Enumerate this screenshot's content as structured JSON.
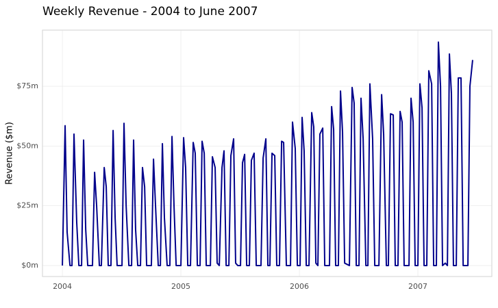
{
  "chart_data": {
    "type": "line",
    "title": "Weekly Revenue - 2004 to June 2007",
    "y_label": "Revenue ($m)",
    "xlim": [
      2003.832,
      2007.624
    ],
    "xticks": [
      2004,
      2005,
      2006,
      2007
    ],
    "ylim": [
      -4.6,
      98.5
    ],
    "yticks": [
      {
        "value": 0,
        "label": "$0m"
      },
      {
        "value": 25,
        "label": "$25m"
      },
      {
        "value": 50,
        "label": "$50m"
      },
      {
        "value": 75,
        "label": "$75m"
      }
    ],
    "grid": true,
    "x": [
      2004.0,
      2004.023,
      2004.04,
      2004.064,
      2004.081,
      2004.098,
      2004.121,
      2004.139,
      2004.162,
      2004.179,
      2004.197,
      2004.214,
      2004.254,
      2004.272,
      2004.289,
      2004.312,
      2004.329,
      2004.353,
      2004.37,
      2004.387,
      2004.41,
      2004.428,
      2004.445,
      2004.462,
      2004.503,
      2004.52,
      2004.538,
      2004.561,
      2004.584,
      2004.601,
      2004.618,
      2004.636,
      2004.659,
      2004.676,
      2004.694,
      2004.711,
      2004.751,
      2004.769,
      2004.786,
      2004.809,
      2004.827,
      2004.844,
      2004.861,
      2004.884,
      2004.907,
      2004.925,
      2004.942,
      2004.96,
      2005.0,
      2005.023,
      2005.04,
      2005.058,
      2005.081,
      2005.104,
      2005.121,
      2005.139,
      2005.162,
      2005.179,
      2005.197,
      2005.214,
      2005.249,
      2005.266,
      2005.289,
      2005.306,
      2005.324,
      2005.347,
      2005.364,
      2005.382,
      2005.405,
      2005.422,
      2005.445,
      2005.462,
      2005.48,
      2005.503,
      2005.52,
      2005.538,
      2005.555,
      2005.578,
      2005.595,
      2005.618,
      2005.636,
      2005.676,
      2005.694,
      2005.717,
      2005.734,
      2005.751,
      2005.769,
      2005.792,
      2005.809,
      2005.832,
      2005.85,
      2005.867,
      2005.89,
      2005.925,
      2005.942,
      2005.965,
      2005.983,
      2006.006,
      2006.023,
      2006.04,
      2006.058,
      2006.081,
      2006.104,
      2006.121,
      2006.139,
      2006.156,
      2006.173,
      2006.197,
      2006.214,
      2006.254,
      2006.272,
      2006.289,
      2006.306,
      2006.329,
      2006.347,
      2006.364,
      2006.382,
      2006.422,
      2006.445,
      2006.462,
      2006.48,
      2006.503,
      2006.52,
      2006.538,
      2006.561,
      2006.578,
      2006.595,
      2006.618,
      2006.636,
      2006.671,
      2006.694,
      2006.711,
      2006.734,
      2006.751,
      2006.769,
      2006.792,
      2006.809,
      2006.832,
      2006.85,
      2006.867,
      2006.884,
      2006.925,
      2006.942,
      2006.96,
      2006.977,
      2007.0,
      2007.017,
      2007.035,
      2007.052,
      2007.075,
      2007.092,
      2007.116,
      2007.133,
      2007.156,
      2007.173,
      2007.191,
      2007.208,
      2007.231,
      2007.249,
      2007.266,
      2007.283,
      2007.3,
      2007.324,
      2007.341,
      2007.364,
      2007.382,
      2007.422,
      2007.439,
      2007.462
    ],
    "series": [
      {
        "color": "#00008b",
        "values": [
          0,
          58.5,
          14,
          0,
          0,
          55,
          18,
          0,
          0,
          52.5,
          15,
          0,
          0,
          39,
          25,
          0,
          0,
          41,
          33,
          0,
          0,
          56.5,
          20,
          0,
          0,
          59.5,
          25,
          0,
          0,
          52.5,
          15,
          0,
          0,
          41,
          33,
          0,
          0,
          44.5,
          25,
          0,
          0,
          51,
          20,
          0,
          0,
          54,
          25,
          0,
          0,
          53.5,
          41,
          0,
          0,
          51.5,
          47,
          0,
          0,
          52,
          47,
          0,
          0,
          45.5,
          41,
          1,
          0,
          41,
          48,
          0,
          0,
          46,
          53,
          1,
          0,
          0,
          43,
          46.5,
          0,
          0,
          44,
          47,
          0,
          0,
          45,
          53,
          0,
          0,
          47,
          46,
          0,
          0,
          52,
          51.5,
          0,
          0,
          60,
          49,
          0,
          0,
          62,
          48,
          0,
          0,
          64,
          58,
          1,
          0,
          55,
          57.5,
          0,
          0,
          66.5,
          57,
          0,
          0,
          73,
          56,
          1,
          0,
          74.5,
          68,
          0,
          0,
          70,
          53,
          0,
          0,
          76,
          53,
          0,
          0,
          71.5,
          55,
          0,
          0,
          63.5,
          63,
          0,
          0,
          64.5,
          60,
          0,
          0,
          70,
          60,
          0,
          0,
          76,
          66,
          0,
          0,
          81.5,
          76,
          0,
          0,
          93.5,
          75,
          0,
          1,
          0,
          88.5,
          72,
          0,
          0,
          78.5,
          78.5,
          0,
          0,
          75,
          86
        ]
      }
    ]
  }
}
